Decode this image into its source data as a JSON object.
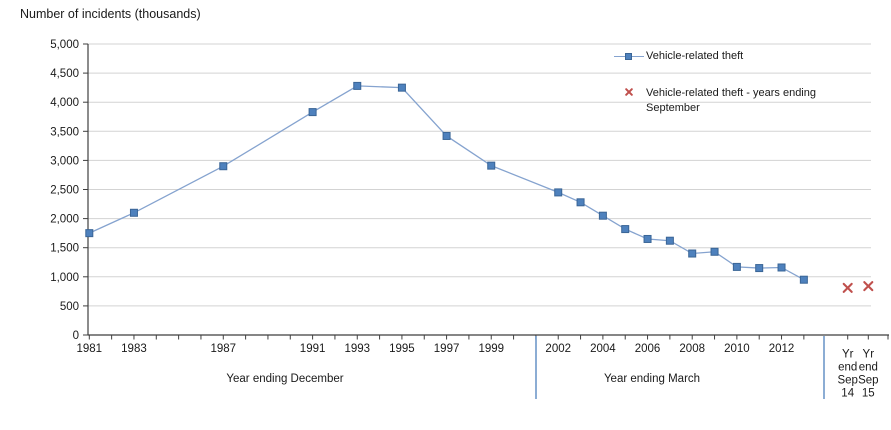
{
  "chart_title": "Number of incidents (thousands)",
  "colors": {
    "series_line": "#85a3cf",
    "series_marker": "#4e81bd",
    "series_marker_border": "#3a6596",
    "x_marker": "#c0504d",
    "gridline": "#d3d3d3",
    "axis": "#3f3f3f",
    "divider": "#4f81bd",
    "text": "#1a1a1a"
  },
  "legend": {
    "items": [
      {
        "label": "Vehicle-related theft",
        "marker": "line-with-square"
      },
      {
        "label": "Vehicle-related theft - years ending September",
        "marker": "x-cross"
      }
    ]
  },
  "chart_data": {
    "type": "line",
    "title": "Number of incidents (thousands)",
    "ylabel": "Number of incidents (thousands)",
    "ylim": [
      0,
      5000
    ],
    "yticks": [
      0,
      500,
      1000,
      1500,
      2000,
      2500,
      3000,
      3500,
      4000,
      4500,
      5000
    ],
    "ytick_labels": [
      "0",
      "500",
      "1,000",
      "1,500",
      "2,000",
      "2,500",
      "3,000",
      "3,500",
      "4,000",
      "4,500",
      "5,000"
    ],
    "grid": true,
    "legend_position": "upper right",
    "x_axis": {
      "year_range": [
        1981,
        2013
      ],
      "sections": [
        {
          "label": "Year ending December",
          "labeled_years": [
            "1981",
            "1983",
            "1987",
            "1991",
            "1993",
            "1995",
            "1997",
            "1999"
          ]
        },
        {
          "label": "Year ending March",
          "labeled_years": [
            "2002",
            "2004",
            "2006",
            "2008",
            "2010",
            "2012"
          ]
        },
        {
          "label": "",
          "category_labels": [
            "Yr end Sep 14",
            "Yr end Sep 15"
          ]
        }
      ]
    },
    "series": [
      {
        "name": "Vehicle-related theft",
        "type": "line-markers",
        "marker": "square",
        "x": [
          1981,
          1983,
          1987,
          1991,
          1993,
          1995,
          1997,
          1999,
          2002,
          2003,
          2004,
          2005,
          2006,
          2007,
          2008,
          2009,
          2010,
          2011,
          2012,
          2013
        ],
        "values": [
          1750,
          2100,
          2900,
          3830,
          4280,
          4250,
          3420,
          2910,
          2450,
          2280,
          2050,
          1820,
          1650,
          1620,
          1400,
          1430,
          1170,
          1150,
          1160,
          950
        ]
      },
      {
        "name": "Vehicle-related theft - years ending September",
        "type": "scatter",
        "marker": "x",
        "x": [
          "Yr end Sep 14",
          "Yr end Sep 15"
        ],
        "values": [
          810,
          840
        ]
      }
    ]
  }
}
